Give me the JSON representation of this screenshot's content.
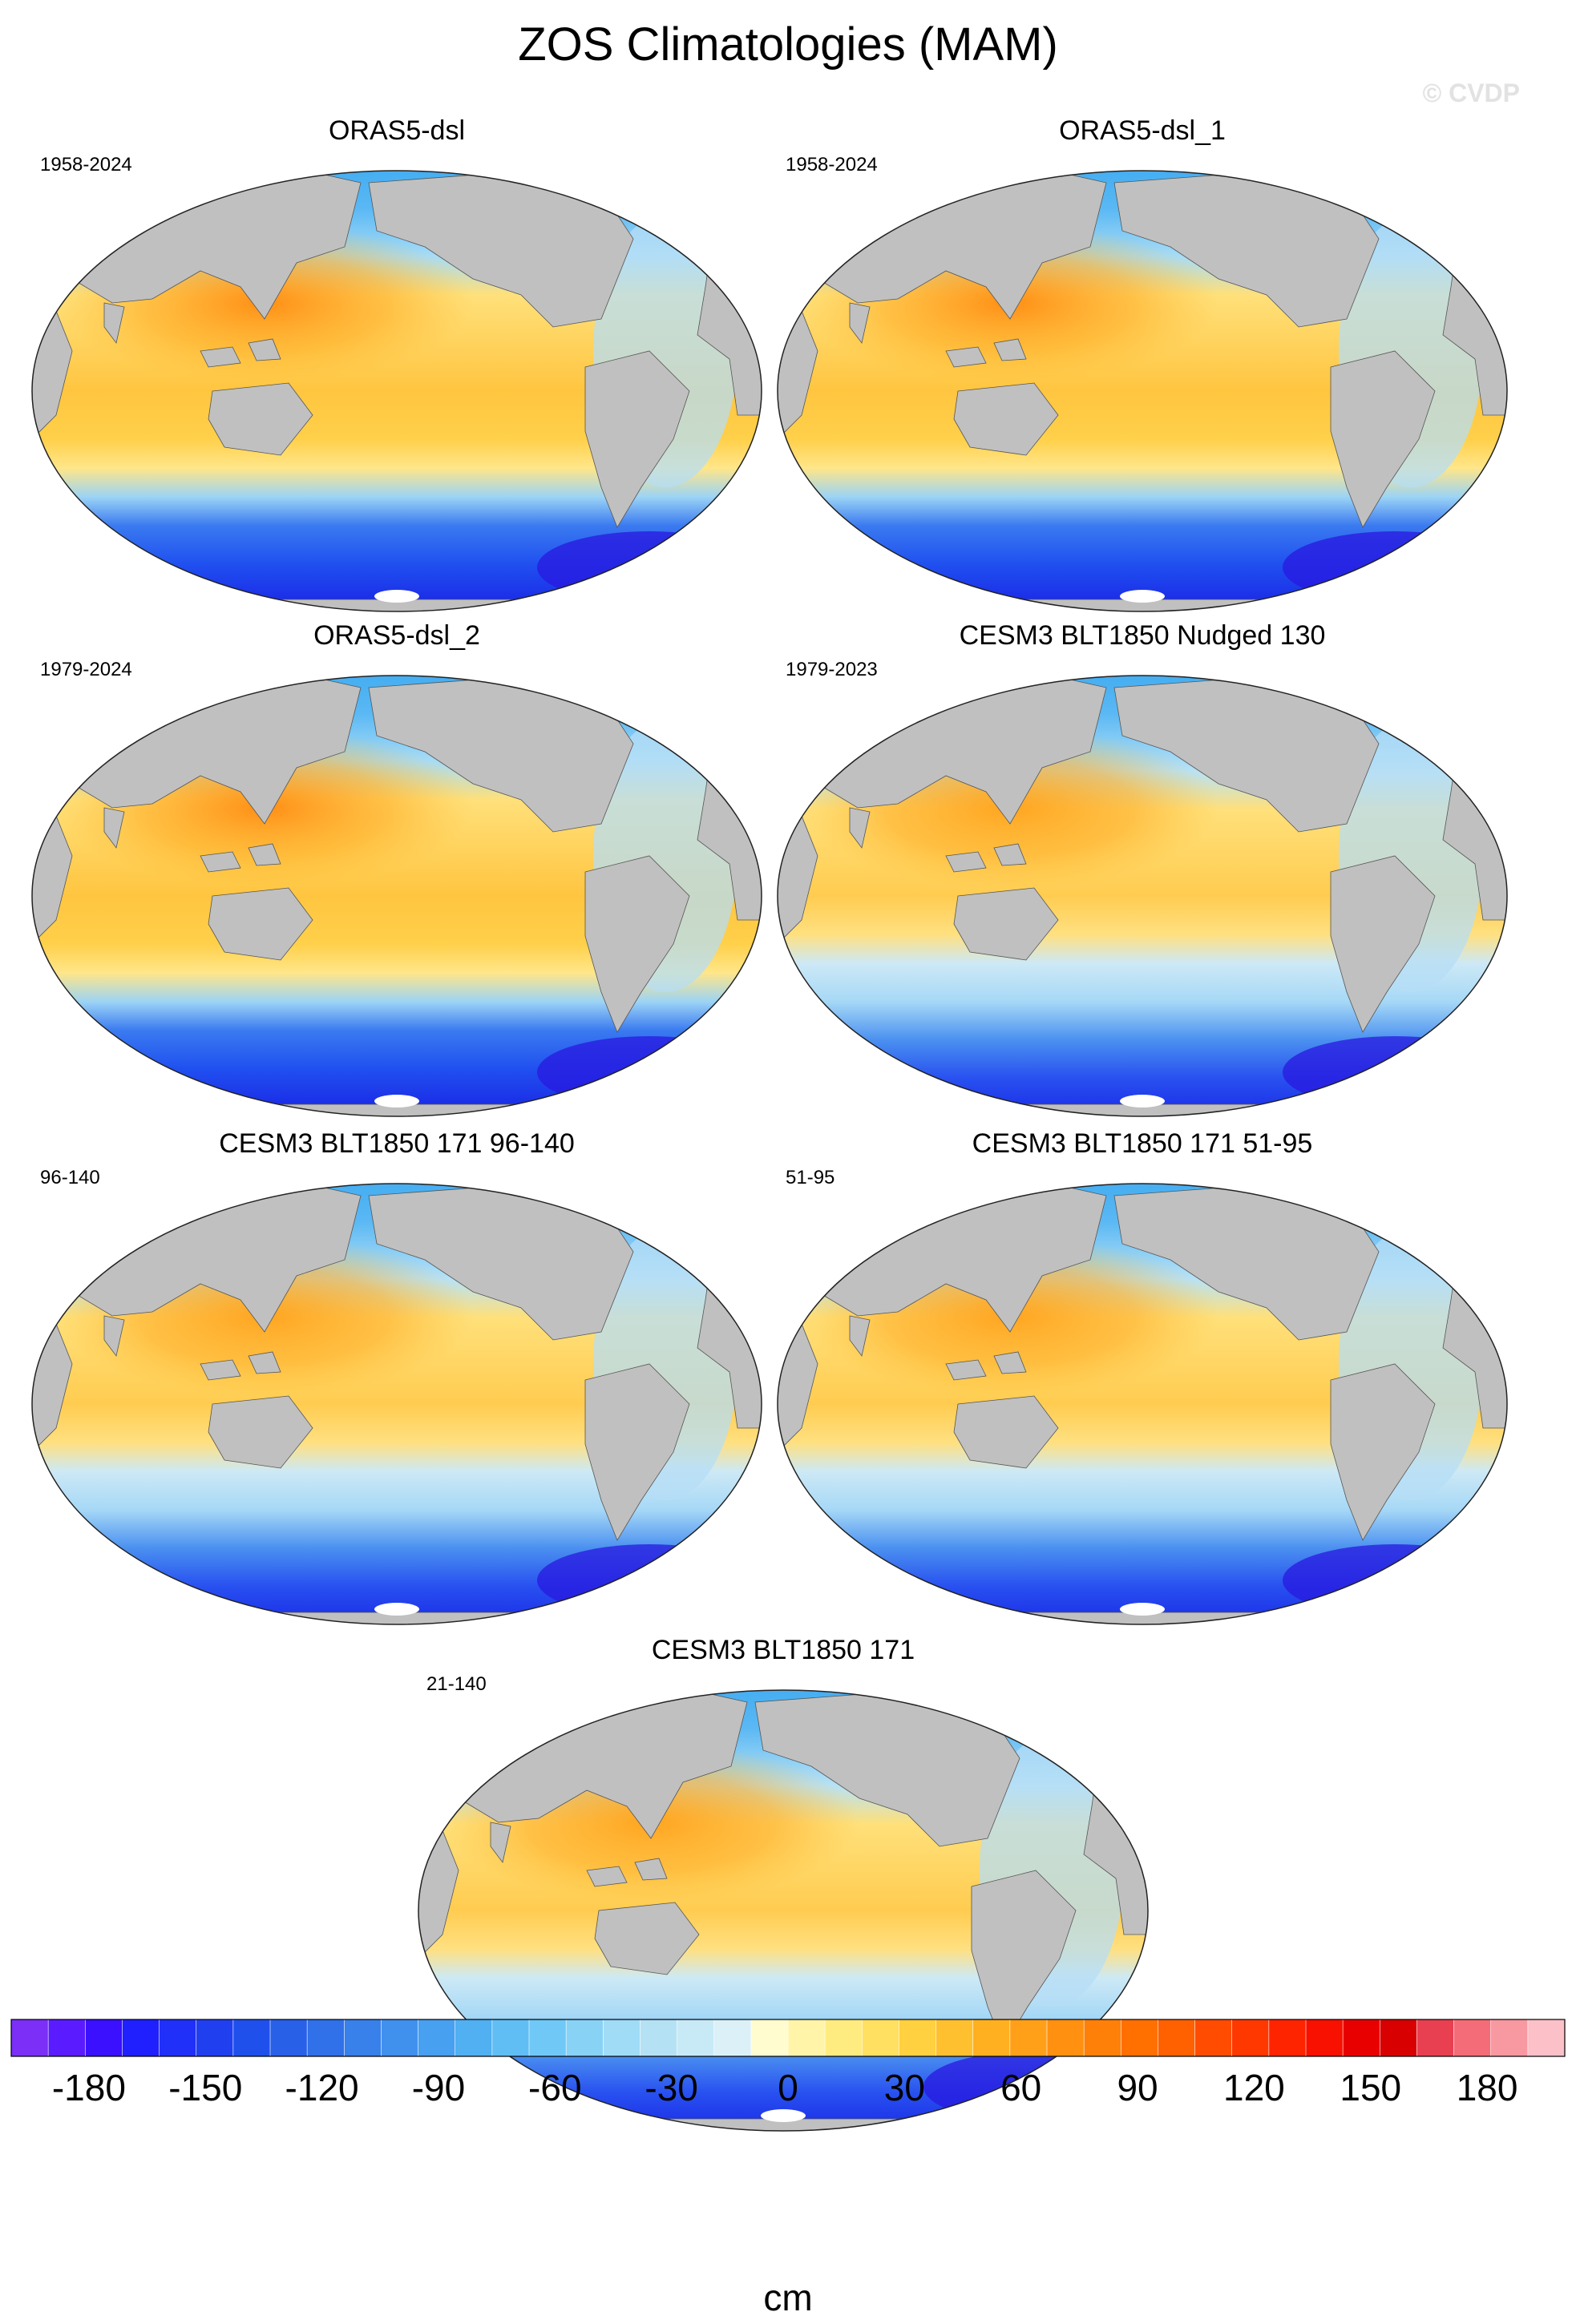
{
  "title": "ZOS Climatologies (MAM)",
  "watermark": "© CVDP",
  "panels": [
    {
      "title": "ORAS5-dsl",
      "years": "1958-2024",
      "variant": "oras"
    },
    {
      "title": "ORAS5-dsl_1",
      "years": "1958-2024",
      "variant": "oras"
    },
    {
      "title": "ORAS5-dsl_2",
      "years": "1979-2024",
      "variant": "oras2"
    },
    {
      "title": "CESM3 BLT1850 Nudged 130",
      "years": "1979-2023",
      "variant": "cesm"
    },
    {
      "title": "CESM3 BLT1850 171 96-140",
      "years": "96-140",
      "variant": "cesm"
    },
    {
      "title": "CESM3 BLT1850 171 51-95",
      "years": "51-95",
      "variant": "cesm"
    },
    {
      "title": "CESM3 BLT1850 171",
      "years": "21-140",
      "variant": "cesm"
    }
  ],
  "colorbar": {
    "units": "cm",
    "min": -200,
    "max": 200,
    "tick_labels": [
      "-180",
      "-150",
      "-120",
      "-90",
      "-60",
      "-30",
      "0",
      "30",
      "60",
      "90",
      "120",
      "150",
      "180"
    ],
    "colors": [
      "#7b2ff7",
      "#5a1cff",
      "#3a10ff",
      "#2020ff",
      "#2030f8",
      "#2040f0",
      "#2050ec",
      "#2860e8",
      "#3070e8",
      "#3880ea",
      "#4090ee",
      "#48a0f0",
      "#50b0f2",
      "#60bef4",
      "#70c8f6",
      "#88d2f6",
      "#a0dcf6",
      "#b4e2f4",
      "#c8eaf6",
      "#dcf0f8",
      "#fffcd0",
      "#fff4a8",
      "#ffec80",
      "#ffe060",
      "#ffd040",
      "#ffc030",
      "#ffb020",
      "#ffa018",
      "#ff9010",
      "#ff8008",
      "#ff7000",
      "#ff6000",
      "#ff4c00",
      "#ff3800",
      "#ff2400",
      "#f81000",
      "#e80000",
      "#d80000",
      "#e84050",
      "#f46c78",
      "#f898a0",
      "#fcc0c8"
    ],
    "land_color": "#c0c0c0"
  }
}
